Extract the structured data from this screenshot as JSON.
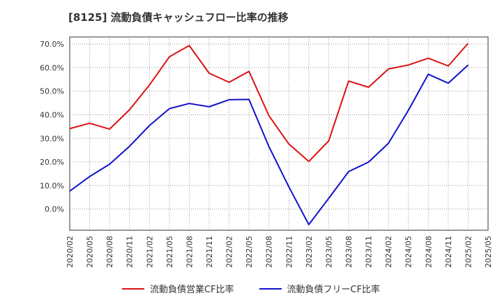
{
  "chart_data": {
    "type": "line",
    "title": "[8125]  流動負債キャッシュフロー比率の推移",
    "x": [
      "2020/02",
      "2020/05",
      "2020/08",
      "2020/11",
      "2021/02",
      "2021/05",
      "2021/08",
      "2021/11",
      "2022/02",
      "2022/05",
      "2022/08",
      "2022/11",
      "2023/02",
      "2023/05",
      "2023/08",
      "2023/11",
      "2024/02",
      "2024/05",
      "2024/08",
      "2024/11",
      "2025/02",
      "2025/05"
    ],
    "xticks": [
      "2020/02",
      "2020/05",
      "2020/08",
      "2020/11",
      "2021/02",
      "2021/05",
      "2021/08",
      "2021/11",
      "2022/02",
      "2022/05",
      "2022/08",
      "2022/11",
      "2023/02",
      "2023/05",
      "2023/08",
      "2023/11",
      "2024/02",
      "2024/05",
      "2024/08",
      "2024/11",
      "2025/02",
      "2025/05"
    ],
    "yticks": [
      0,
      10,
      20,
      30,
      40,
      50,
      60,
      70
    ],
    "ytick_labels": [
      "0.0%",
      "10.0%",
      "20.0%",
      "30.0%",
      "40.0%",
      "50.0%",
      "60.0%",
      "70.0%"
    ],
    "ylim": [
      -9,
      73
    ],
    "grid": true,
    "legend_position": "bottom",
    "series": [
      {
        "name": "流動負債営業CF比率",
        "color": "#dd1111",
        "values": [
          34.1,
          36.4,
          33.9,
          42.1,
          52.6,
          64.6,
          69.4,
          57.6,
          53.8,
          58.4,
          39.6,
          27.6,
          20.2,
          28.9,
          54.3,
          51.7,
          59.4,
          61.1,
          64.0,
          60.7,
          70.3,
          null
        ]
      },
      {
        "name": "流動負債フリーCF比率",
        "color": "#1111cc",
        "values": [
          7.6,
          13.8,
          19.0,
          26.6,
          35.4,
          42.6,
          44.8,
          43.4,
          46.4,
          46.5,
          26.5,
          9.4,
          -6.6,
          4.5,
          15.9,
          19.9,
          27.9,
          41.9,
          57.2,
          53.4,
          61.1,
          null
        ]
      }
    ]
  }
}
